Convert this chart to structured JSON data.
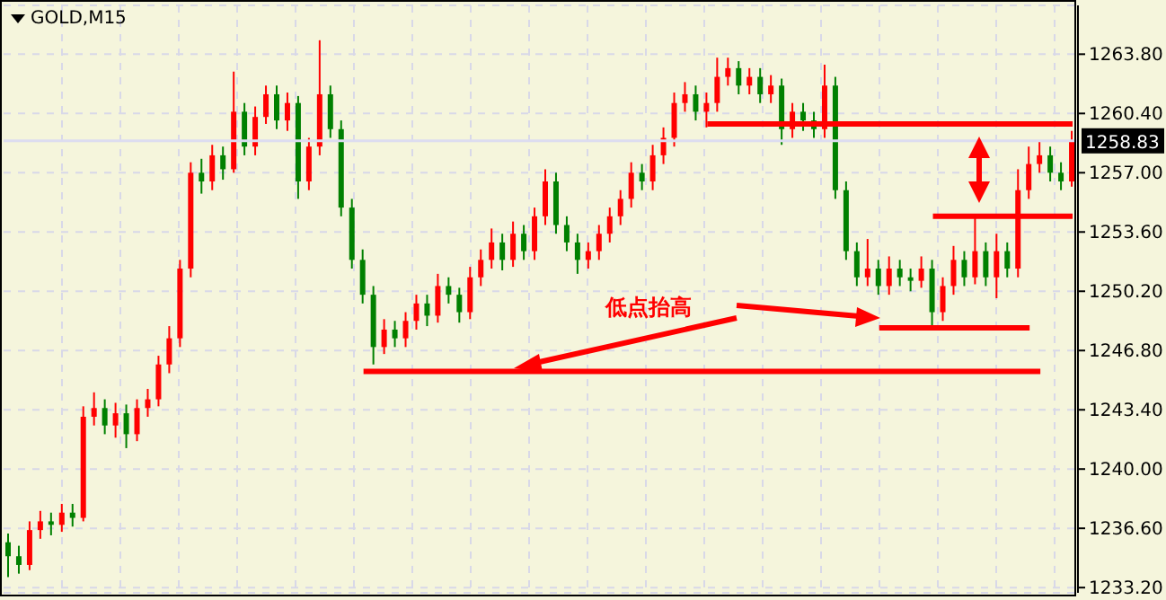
{
  "chart_data": {
    "type": "candlestick",
    "title": "GOLD,M15",
    "annotations": [
      "低点抬高"
    ],
    "grid": true,
    "categories": [
      null,
      null,
      null,
      null,
      null,
      null,
      null,
      null,
      null,
      null,
      null,
      null,
      null,
      null,
      null,
      null,
      null,
      null,
      null,
      null,
      null,
      null,
      null,
      null,
      null,
      null,
      null,
      null,
      null,
      null,
      null,
      null,
      null,
      null,
      null,
      null,
      null,
      null,
      null,
      null,
      null,
      null,
      null,
      null,
      null,
      null,
      null,
      null,
      null,
      null,
      null,
      null,
      null,
      null,
      null,
      null,
      null,
      null,
      null,
      null,
      null,
      null,
      null,
      null,
      null,
      null,
      null,
      null,
      null,
      null,
      null,
      null,
      null,
      null,
      null,
      null,
      null,
      null,
      null,
      null,
      null,
      null,
      null,
      null,
      null,
      null,
      null,
      null,
      null,
      null,
      null,
      null,
      null,
      null,
      null,
      null,
      null,
      null,
      null,
      null
    ],
    "ohlc": [
      [
        1235.8,
        1236.3,
        1233.8,
        1235.0
      ],
      [
        1235.0,
        1235.6,
        1234.0,
        1234.5
      ],
      [
        1234.5,
        1237.0,
        1234.2,
        1236.5
      ],
      [
        1236.5,
        1237.6,
        1236.0,
        1237.0
      ],
      [
        1237.0,
        1237.5,
        1236.2,
        1236.8
      ],
      [
        1236.8,
        1238.0,
        1236.4,
        1237.5
      ],
      [
        1237.5,
        1238.0,
        1236.7,
        1237.2
      ],
      [
        1237.2,
        1243.6,
        1237.0,
        1243.0
      ],
      [
        1243.0,
        1244.4,
        1242.5,
        1243.5
      ],
      [
        1243.5,
        1244.0,
        1242.0,
        1242.5
      ],
      [
        1242.5,
        1243.8,
        1241.8,
        1243.2
      ],
      [
        1243.2,
        1243.7,
        1241.2,
        1242.0
      ],
      [
        1242.0,
        1244.0,
        1241.6,
        1243.5
      ],
      [
        1243.5,
        1244.6,
        1243.0,
        1244.0
      ],
      [
        1244.0,
        1246.5,
        1243.6,
        1246.0
      ],
      [
        1246.0,
        1248.2,
        1245.5,
        1247.5
      ],
      [
        1247.5,
        1252.0,
        1247.0,
        1251.5
      ],
      [
        1251.5,
        1257.6,
        1251.0,
        1257.0
      ],
      [
        1257.0,
        1257.8,
        1255.8,
        1256.5
      ],
      [
        1256.5,
        1258.6,
        1256.0,
        1258.0
      ],
      [
        1258.0,
        1258.5,
        1256.6,
        1257.2
      ],
      [
        1257.2,
        1262.8,
        1257.0,
        1260.5
      ],
      [
        1260.5,
        1261.0,
        1258.0,
        1258.5
      ],
      [
        1258.5,
        1260.8,
        1258.0,
        1260.2
      ],
      [
        1260.2,
        1262.0,
        1259.8,
        1261.5
      ],
      [
        1261.5,
        1262.0,
        1259.5,
        1260.0
      ],
      [
        1260.0,
        1261.6,
        1259.4,
        1261.0
      ],
      [
        1261.0,
        1261.4,
        1255.5,
        1256.5
      ],
      [
        1256.5,
        1259.0,
        1256.0,
        1258.5
      ],
      [
        1258.5,
        1264.6,
        1258.0,
        1261.5
      ],
      [
        1261.5,
        1262.0,
        1259.0,
        1259.5
      ],
      [
        1259.5,
        1260.0,
        1254.5,
        1255.0
      ],
      [
        1255.0,
        1255.5,
        1251.5,
        1252.0
      ],
      [
        1252.0,
        1252.6,
        1249.5,
        1250.0
      ],
      [
        1250.0,
        1250.5,
        1246.0,
        1247.0
      ],
      [
        1247.0,
        1248.6,
        1246.6,
        1248.0
      ],
      [
        1248.0,
        1248.5,
        1247.0,
        1247.5
      ],
      [
        1247.5,
        1249.0,
        1247.0,
        1248.5
      ],
      [
        1248.5,
        1250.0,
        1248.0,
        1249.5
      ],
      [
        1249.5,
        1250.0,
        1248.2,
        1248.8
      ],
      [
        1248.8,
        1251.2,
        1248.4,
        1250.5
      ],
      [
        1250.5,
        1251.0,
        1249.5,
        1250.0
      ],
      [
        1250.0,
        1250.4,
        1248.4,
        1249.0
      ],
      [
        1249.0,
        1251.6,
        1248.6,
        1251.0
      ],
      [
        1251.0,
        1252.6,
        1250.5,
        1252.0
      ],
      [
        1252.0,
        1253.8,
        1251.5,
        1253.0
      ],
      [
        1253.0,
        1253.5,
        1251.4,
        1252.0
      ],
      [
        1252.0,
        1254.2,
        1251.6,
        1253.5
      ],
      [
        1253.5,
        1254.0,
        1252.0,
        1252.5
      ],
      [
        1252.5,
        1255.0,
        1252.0,
        1254.5
      ],
      [
        1254.5,
        1257.2,
        1254.0,
        1256.5
      ],
      [
        1256.5,
        1257.0,
        1253.5,
        1254.0
      ],
      [
        1254.0,
        1254.5,
        1252.5,
        1253.0
      ],
      [
        1253.0,
        1253.5,
        1251.2,
        1252.0
      ],
      [
        1252.0,
        1253.0,
        1251.5,
        1252.5
      ],
      [
        1252.5,
        1254.0,
        1252.0,
        1253.5
      ],
      [
        1253.5,
        1255.0,
        1253.0,
        1254.5
      ],
      [
        1254.5,
        1256.0,
        1254.0,
        1255.5
      ],
      [
        1255.5,
        1257.6,
        1255.0,
        1257.0
      ],
      [
        1257.0,
        1257.5,
        1256.0,
        1256.5
      ],
      [
        1256.5,
        1258.6,
        1256.0,
        1258.0
      ],
      [
        1258.0,
        1259.6,
        1257.5,
        1259.0
      ],
      [
        1259.0,
        1261.6,
        1258.5,
        1261.0
      ],
      [
        1261.0,
        1262.2,
        1260.5,
        1261.5
      ],
      [
        1261.5,
        1262.0,
        1260.0,
        1260.5
      ],
      [
        1260.5,
        1261.6,
        1259.6,
        1261.0
      ],
      [
        1261.0,
        1263.6,
        1260.5,
        1262.5
      ],
      [
        1262.5,
        1263.6,
        1262.0,
        1263.0
      ],
      [
        1263.0,
        1263.4,
        1261.5,
        1262.0
      ],
      [
        1262.0,
        1263.0,
        1261.5,
        1262.5
      ],
      [
        1262.5,
        1263.0,
        1261.0,
        1261.5
      ],
      [
        1261.5,
        1262.6,
        1261.0,
        1262.0
      ],
      [
        1262.0,
        1262.4,
        1258.6,
        1259.5
      ],
      [
        1259.5,
        1261.0,
        1259.0,
        1260.5
      ],
      [
        1260.5,
        1261.0,
        1259.4,
        1260.0
      ],
      [
        1260.0,
        1260.5,
        1259.0,
        1259.5
      ],
      [
        1259.5,
        1263.2,
        1259.0,
        1262.0
      ],
      [
        1262.0,
        1262.5,
        1255.5,
        1256.0
      ],
      [
        1256.0,
        1256.5,
        1252.0,
        1252.5
      ],
      [
        1252.5,
        1253.0,
        1250.5,
        1251.0
      ],
      [
        1251.0,
        1253.2,
        1250.5,
        1251.5
      ],
      [
        1251.5,
        1252.0,
        1250.0,
        1250.5
      ],
      [
        1250.5,
        1252.2,
        1250.0,
        1251.5
      ],
      [
        1251.5,
        1252.0,
        1250.5,
        1251.0
      ],
      [
        1251.0,
        1251.5,
        1250.2,
        1250.8
      ],
      [
        1250.8,
        1252.2,
        1250.4,
        1251.5
      ],
      [
        1251.5,
        1252.0,
        1248.0,
        1249.0
      ],
      [
        1249.0,
        1251.0,
        1248.5,
        1250.5
      ],
      [
        1250.5,
        1252.8,
        1250.0,
        1252.0
      ],
      [
        1252.0,
        1252.5,
        1250.5,
        1251.0
      ],
      [
        1251.0,
        1254.5,
        1250.6,
        1252.5
      ],
      [
        1252.5,
        1253.0,
        1250.5,
        1251.0
      ],
      [
        1251.0,
        1253.5,
        1249.8,
        1252.5
      ],
      [
        1252.5,
        1253.0,
        1251.0,
        1251.5
      ],
      [
        1251.5,
        1257.2,
        1251.0,
        1256.0
      ],
      [
        1256.0,
        1258.5,
        1255.5,
        1257.5
      ],
      [
        1257.5,
        1258.8,
        1257.0,
        1258.0
      ],
      [
        1258.0,
        1258.5,
        1256.5,
        1257.0
      ],
      [
        1257.0,
        1257.6,
        1256.0,
        1256.5
      ],
      [
        1256.5,
        1259.4,
        1256.2,
        1258.83
      ]
    ],
    "colors": [
      "#008000",
      "#008000",
      "#ff0000",
      "#ff0000",
      "#008000",
      "#ff0000",
      "#008000",
      "#ff0000",
      "#ff0000",
      "#008000",
      "#ff0000",
      "#008000",
      "#ff0000",
      "#ff0000",
      "#ff0000",
      "#ff0000",
      "#ff0000",
      "#ff0000",
      "#008000",
      "#ff0000",
      "#008000",
      "#ff0000",
      "#008000",
      "#ff0000",
      "#ff0000",
      "#008000",
      "#ff0000",
      "#008000",
      "#ff0000",
      "#ff0000",
      "#008000",
      "#008000",
      "#008000",
      "#008000",
      "#008000",
      "#ff0000",
      "#008000",
      "#ff0000",
      "#ff0000",
      "#008000",
      "#ff0000",
      "#008000",
      "#008000",
      "#ff0000",
      "#ff0000",
      "#ff0000",
      "#008000",
      "#ff0000",
      "#008000",
      "#ff0000",
      "#ff0000",
      "#008000",
      "#008000",
      "#008000",
      "#ff0000",
      "#ff0000",
      "#ff0000",
      "#ff0000",
      "#ff0000",
      "#008000",
      "#ff0000",
      "#ff0000",
      "#ff0000",
      "#ff0000",
      "#008000",
      "#ff0000",
      "#ff0000",
      "#ff0000",
      "#008000",
      "#ff0000",
      "#008000",
      "#ff0000",
      "#008000",
      "#ff0000",
      "#008000",
      "#008000",
      "#ff0000",
      "#008000",
      "#008000",
      "#008000",
      "#ff0000",
      "#008000",
      "#ff0000",
      "#008000",
      "#008000",
      "#ff0000",
      "#008000",
      "#ff0000",
      "#ff0000",
      "#008000",
      "#ff0000",
      "#008000",
      "#ff0000",
      "#008000",
      "#ff0000",
      "#ff0000",
      "#ff0000",
      "#008000",
      "#008000",
      "#ff0000"
    ],
    "series": [
      {
        "type": "line",
        "color": "#ff0000",
        "values": [
          null,
          null,
          null,
          null,
          null,
          null,
          null,
          null,
          null,
          null,
          null,
          null,
          null,
          null,
          null,
          null,
          null,
          null,
          null,
          null,
          null,
          null,
          null,
          null,
          null,
          null,
          null,
          null,
          null,
          null,
          null,
          null,
          null,
          null,
          null,
          null,
          null,
          null,
          null,
          null,
          null,
          null,
          null,
          null,
          null,
          null,
          null,
          null,
          null,
          null,
          null,
          null,
          null,
          null,
          null,
          null,
          null,
          null,
          null,
          null,
          null,
          null,
          null,
          null,
          null,
          1259.8,
          1259.8,
          1259.8,
          1259.8,
          1259.8,
          1259.8,
          1259.8,
          1259.8,
          1259.8,
          1259.8,
          1259.8,
          1259.8,
          1259.8,
          1259.8,
          1259.8,
          1259.8,
          1259.8,
          1259.8,
          1259.8,
          1259.8,
          1259.8,
          1259.8,
          1259.8,
          1259.8,
          1259.8,
          1259.8,
          1259.8,
          1259.8,
          1259.8,
          1259.8,
          1259.8,
          1259.8,
          1259.8,
          1259.8,
          1259.8
        ]
      },
      {
        "type": "line",
        "color": "#ff0000",
        "values": [
          null,
          null,
          null,
          null,
          null,
          null,
          null,
          null,
          null,
          null,
          null,
          null,
          null,
          null,
          null,
          null,
          null,
          null,
          null,
          null,
          null,
          null,
          null,
          null,
          null,
          null,
          null,
          null,
          null,
          null,
          null,
          null,
          null,
          null,
          null,
          null,
          null,
          null,
          null,
          null,
          null,
          null,
          null,
          null,
          null,
          null,
          null,
          null,
          null,
          null,
          null,
          null,
          null,
          null,
          null,
          null,
          null,
          null,
          null,
          null,
          null,
          null,
          null,
          null,
          null,
          null,
          null,
          null,
          null,
          null,
          null,
          null,
          null,
          null,
          null,
          null,
          null,
          null,
          null,
          null,
          null,
          null,
          null,
          null,
          null,
          null,
          1254.5,
          1254.5,
          1254.5,
          1254.5,
          1254.5,
          1254.5,
          1254.5,
          1254.5,
          1254.5,
          1254.5,
          1254.5,
          1254.5,
          1254.5,
          1254.5
        ]
      },
      {
        "type": "line",
        "color": "#ff0000",
        "values": [
          null,
          null,
          null,
          null,
          null,
          null,
          null,
          null,
          null,
          null,
          null,
          null,
          null,
          null,
          null,
          null,
          null,
          null,
          null,
          null,
          null,
          null,
          null,
          null,
          null,
          null,
          null,
          null,
          null,
          null,
          null,
          null,
          null,
          null,
          null,
          null,
          null,
          null,
          null,
          null,
          null,
          null,
          null,
          null,
          null,
          null,
          null,
          null,
          null,
          null,
          null,
          null,
          null,
          null,
          null,
          null,
          null,
          null,
          null,
          null,
          null,
          null,
          null,
          null,
          null,
          null,
          null,
          null,
          null,
          null,
          null,
          null,
          null,
          null,
          null,
          null,
          null,
          null,
          null,
          null,
          null,
          1248.1,
          1248.1,
          1248.1,
          1248.1,
          1248.1,
          1248.1,
          1248.1,
          1248.1,
          1248.1,
          1248.1,
          1248.1,
          1248.1,
          1248.1,
          1248.1,
          1248.1,
          null,
          null,
          null,
          null
        ]
      },
      {
        "type": "line",
        "color": "#ff0000",
        "values": [
          null,
          null,
          null,
          null,
          null,
          null,
          null,
          null,
          null,
          null,
          null,
          null,
          null,
          null,
          null,
          null,
          null,
          null,
          null,
          null,
          null,
          null,
          null,
          null,
          null,
          null,
          null,
          null,
          null,
          null,
          null,
          null,
          null,
          1245.6,
          1245.6,
          1245.6,
          1245.6,
          1245.6,
          1245.6,
          1245.6,
          1245.6,
          1245.6,
          1245.6,
          1245.6,
          1245.6,
          1245.6,
          1245.6,
          1245.6,
          1245.6,
          1245.6,
          1245.6,
          1245.6,
          1245.6,
          1245.6,
          1245.6,
          1245.6,
          1245.6,
          1245.6,
          1245.6,
          1245.6,
          1245.6,
          1245.6,
          1245.6,
          1245.6,
          1245.6,
          1245.6,
          1245.6,
          1245.6,
          1245.6,
          1245.6,
          1245.6,
          1245.6,
          1245.6,
          1245.6,
          1245.6,
          1245.6,
          1245.6,
          1245.6,
          1245.6,
          1245.6,
          1245.6,
          1245.6,
          1245.6,
          1245.6,
          1245.6,
          1245.6,
          1245.6,
          1245.6,
          1245.6,
          1245.6,
          1245.6,
          1245.6,
          1245.6,
          1245.6,
          1245.6,
          1245.6,
          1245.6,
          null,
          null,
          null
        ]
      }
    ],
    "ref_lines": [
      {
        "axis": "y",
        "value": 1258.83,
        "label": "1258.83",
        "color": "#dcdcf0"
      }
    ],
    "ylim": [
      1232.9,
      1266.6
    ],
    "yticks": [
      {
        "value": 1233.2,
        "label": "1233.20"
      },
      {
        "value": 1236.6,
        "label": "1236.60"
      },
      {
        "value": 1240.0,
        "label": "1240.00"
      },
      {
        "value": 1243.4,
        "label": "1243.40"
      },
      {
        "value": 1246.8,
        "label": "1246.80"
      },
      {
        "value": 1250.2,
        "label": "1250.20"
      },
      {
        "value": 1253.6,
        "label": "1253.60"
      },
      {
        "value": 1257.0,
        "label": "1257.00"
      },
      {
        "value": 1260.4,
        "label": "1260.40"
      },
      {
        "value": 1263.8,
        "label": "1263.80"
      }
    ]
  }
}
